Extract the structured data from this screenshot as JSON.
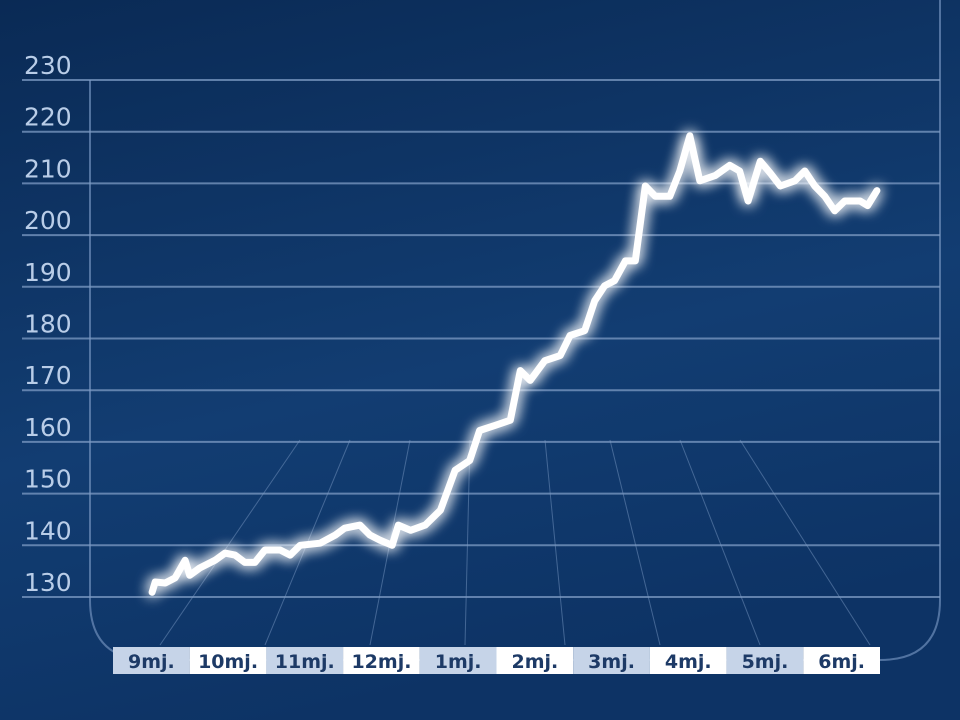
{
  "chart_data": {
    "type": "line",
    "x": [
      0.51,
      0.55,
      0.68,
      0.81,
      0.94,
      1.0,
      1.13,
      1.33,
      1.46,
      1.59,
      1.72,
      1.85,
      1.98,
      2.18,
      2.31,
      2.44,
      2.7,
      2.9,
      3.02,
      3.22,
      3.35,
      3.48,
      3.64,
      3.72,
      3.88,
      4.07,
      4.27,
      4.46,
      4.65,
      4.78,
      4.98,
      5.18,
      5.31,
      5.44,
      5.63,
      5.83,
      5.96,
      6.15,
      6.28,
      6.41,
      6.54,
      6.68,
      6.81,
      6.94,
      7.07,
      7.26,
      7.39,
      7.52,
      7.65,
      7.85,
      8.04,
      8.17,
      8.28,
      8.44,
      8.57,
      8.7,
      8.89,
      9.02,
      9.15,
      9.28,
      9.41,
      9.54,
      9.74,
      9.84,
      9.96
    ],
    "series": [
      {
        "color": "#ffffff",
        "values": [
          130.9,
          132.9,
          132.7,
          133.7,
          137.1,
          134.2,
          135.6,
          137.1,
          138.5,
          138.1,
          136.7,
          136.7,
          139.1,
          139.1,
          138.1,
          140.0,
          140.4,
          142.0,
          143.3,
          143.9,
          142.0,
          141.0,
          140.0,
          143.9,
          142.9,
          143.9,
          146.8,
          154.5,
          156.4,
          162.2,
          163.2,
          164.2,
          173.8,
          171.9,
          175.7,
          176.7,
          180.6,
          181.5,
          187.3,
          190.2,
          191.2,
          195.0,
          195.0,
          209.5,
          207.5,
          207.5,
          212.4,
          219.2,
          210.5,
          211.5,
          213.5,
          212.4,
          206.6,
          214.3,
          212.0,
          209.5,
          210.5,
          212.4,
          209.5,
          207.5,
          204.7,
          206.6,
          206.6,
          205.7,
          208.6
        ]
      }
    ],
    "xlim": [
      0,
      10
    ],
    "xticks": [
      {
        "value": 0.5,
        "label": "9mj."
      },
      {
        "value": 1.5,
        "label": "10mj."
      },
      {
        "value": 2.5,
        "label": "11mj."
      },
      {
        "value": 3.5,
        "label": "12mj."
      },
      {
        "value": 4.5,
        "label": "1mj."
      },
      {
        "value": 5.5,
        "label": "2mj."
      },
      {
        "value": 6.5,
        "label": "3mj."
      },
      {
        "value": 7.5,
        "label": "4mj."
      },
      {
        "value": 8.5,
        "label": "5mj."
      },
      {
        "value": 9.5,
        "label": "6mj."
      }
    ],
    "ylim": [
      130,
      230
    ],
    "yticks": [
      130,
      140,
      150,
      160,
      170,
      180,
      190,
      200,
      210,
      220,
      230
    ],
    "grid": true
  }
}
